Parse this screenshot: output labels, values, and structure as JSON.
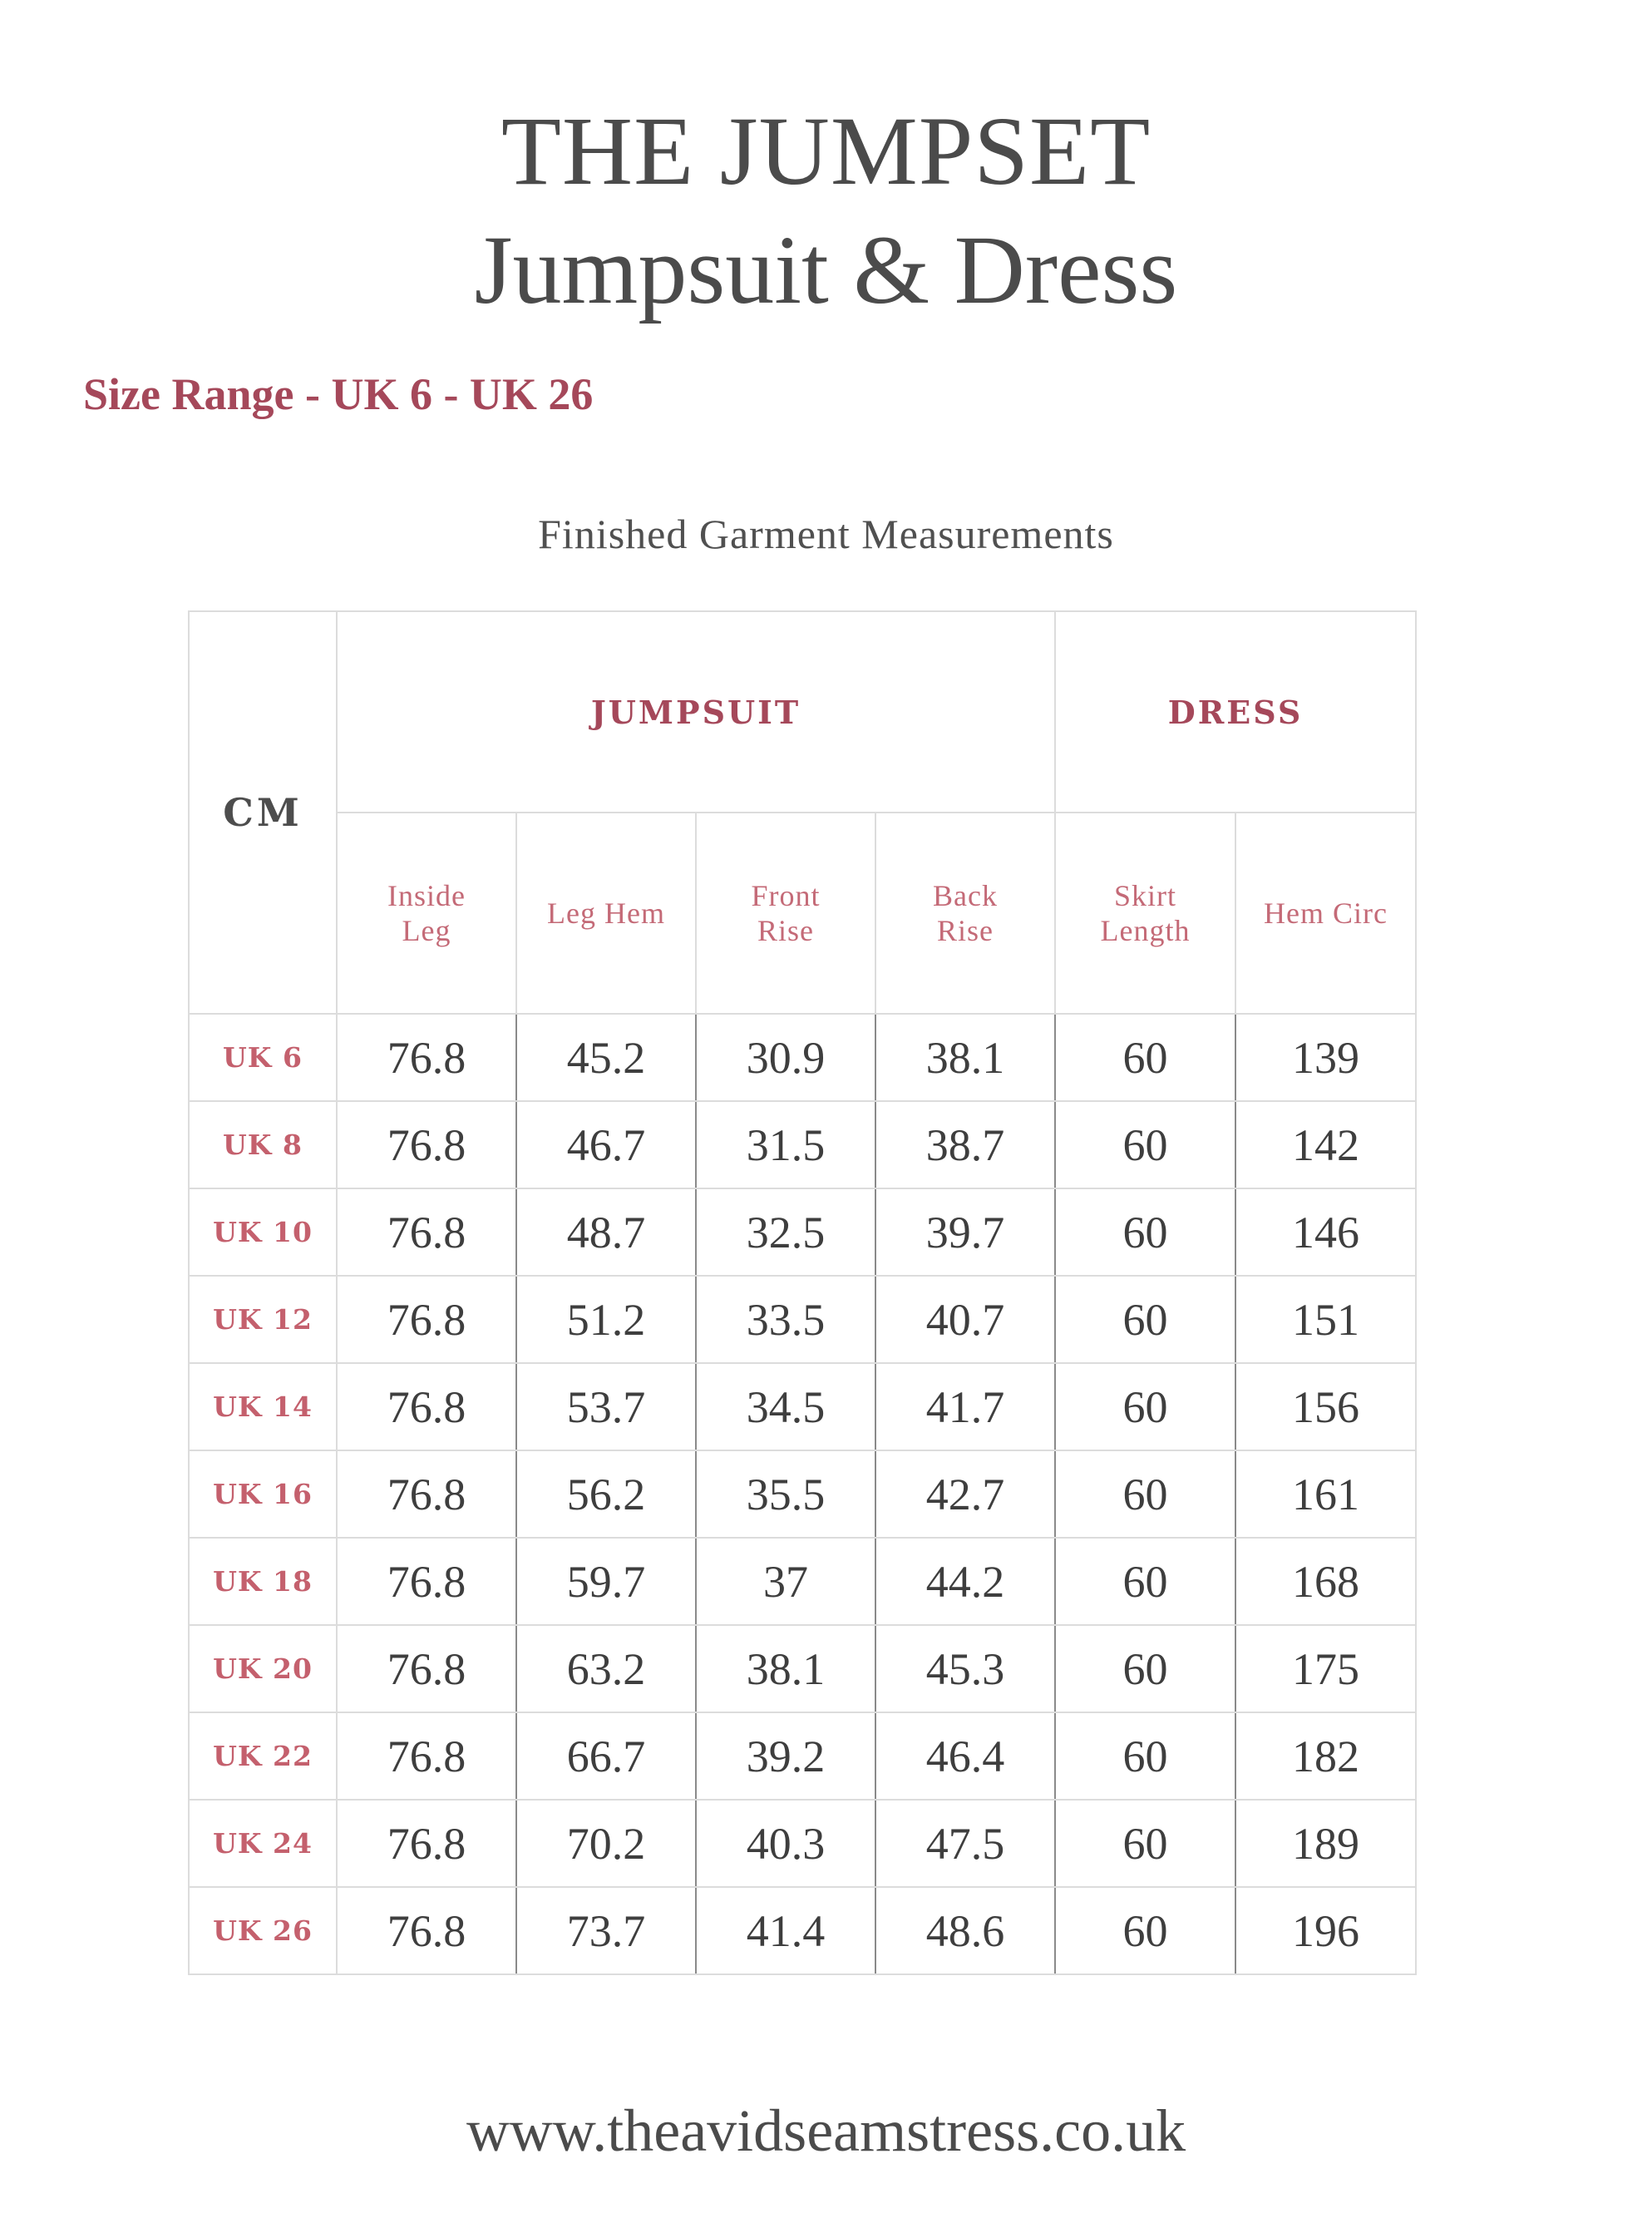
{
  "title": {
    "line1": "THE JUMPSET",
    "line2": "Jumpsuit & Dress"
  },
  "size_range": "Size Range - UK 6 - UK 26",
  "subtitle": "Finished Garment Measurements",
  "table": {
    "unit_label": "CM",
    "groups": {
      "jumpsuit": "JUMPSUIT",
      "dress": "DRESS"
    },
    "columns": [
      "Inside Leg",
      "Leg Hem",
      "Front Rise",
      "Back Rise",
      "Skirt Length",
      "Hem Circ"
    ],
    "rows": [
      {
        "size": "UK 6",
        "values": [
          "76.8",
          "45.2",
          "30.9",
          "38.1",
          "60",
          "139"
        ]
      },
      {
        "size": "UK 8",
        "values": [
          "76.8",
          "46.7",
          "31.5",
          "38.7",
          "60",
          "142"
        ]
      },
      {
        "size": "UK 10",
        "values": [
          "76.8",
          "48.7",
          "32.5",
          "39.7",
          "60",
          "146"
        ]
      },
      {
        "size": "UK 12",
        "values": [
          "76.8",
          "51.2",
          "33.5",
          "40.7",
          "60",
          "151"
        ]
      },
      {
        "size": "UK 14",
        "values": [
          "76.8",
          "53.7",
          "34.5",
          "41.7",
          "60",
          "156"
        ]
      },
      {
        "size": "UK 16",
        "values": [
          "76.8",
          "56.2",
          "35.5",
          "42.7",
          "60",
          "161"
        ]
      },
      {
        "size": "UK 18",
        "values": [
          "76.8",
          "59.7",
          "37",
          "44.2",
          "60",
          "168"
        ]
      },
      {
        "size": "UK 20",
        "values": [
          "76.8",
          "63.2",
          "38.1",
          "45.3",
          "60",
          "175"
        ]
      },
      {
        "size": "UK 22",
        "values": [
          "76.8",
          "66.7",
          "39.2",
          "46.4",
          "60",
          "182"
        ]
      },
      {
        "size": "UK 24",
        "values": [
          "76.8",
          "70.2",
          "40.3",
          "47.5",
          "60",
          "189"
        ]
      },
      {
        "size": "UK 26",
        "values": [
          "76.8",
          "73.7",
          "41.4",
          "48.6",
          "60",
          "196"
        ]
      }
    ]
  },
  "footer_url": "www.theavidseamstress.co.uk",
  "colors": {
    "accent": "#a5485a",
    "accent_light": "#c46a77",
    "text": "#4b4b4b"
  }
}
